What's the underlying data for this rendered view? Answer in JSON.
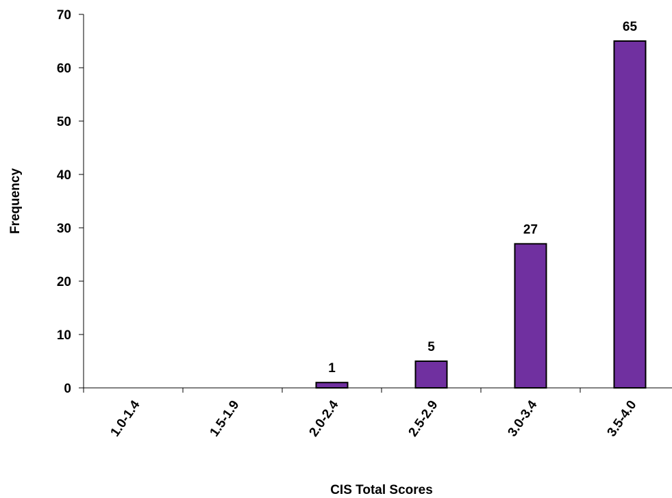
{
  "chart_data": {
    "type": "bar",
    "title": "",
    "xlabel": "CIS  Total Scores",
    "ylabel": "Frequency",
    "categories": [
      "1.0-1.4",
      "1.5-1.9",
      "2.0-2.4",
      "2.5-2.9",
      "3.0-3.4",
      "3.5-4.0"
    ],
    "values": [
      0,
      0,
      1,
      5,
      27,
      65
    ],
    "data_labels": [
      "",
      "",
      "1",
      "5",
      "27",
      "65"
    ],
    "ylim": [
      0,
      70
    ],
    "yticks": [
      0,
      10,
      20,
      30,
      40,
      50,
      60,
      70
    ],
    "grid": false,
    "legend": "none",
    "bar_color": "#7030a0",
    "bar_edge_color": "#000000"
  }
}
